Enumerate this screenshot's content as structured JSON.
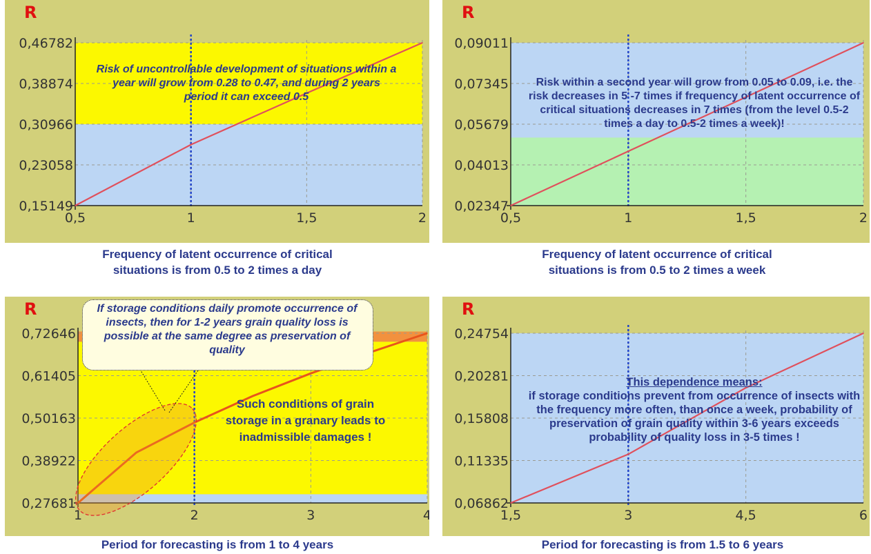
{
  "colors": {
    "frame_bg": "#d2d07a",
    "plot_bg": "#bcd6f4",
    "yellow": "#fcf800",
    "green": "#b5f1b2",
    "orange_band": "#f2913e",
    "curve_red": "#e0505c",
    "curve_orange": "#e8541c",
    "grid": "#9a9a90",
    "marker_blue": "#2244c8",
    "axis_label": "#e01010",
    "text_blue": "#2b3a8c"
  },
  "charts": [
    {
      "id": "tl",
      "axis_letter": "R",
      "yticks": [
        "0,46782",
        "0,38874",
        "0,30966",
        "0,23058",
        "0,15149"
      ],
      "xticks": [
        "0,5",
        "1",
        "1,5",
        "2"
      ],
      "caption": "Frequency of latent occurrence of critical\nsituations is from 0.5 to 2 times a day",
      "note": "Risk of uncontrollable development of situations within a year will grow from 0.28 to 0.47, and during 2 years period it can exceed 0.5"
    },
    {
      "id": "tr",
      "axis_letter": "R",
      "yticks": [
        "0,09011",
        "0,07345",
        "0,05679",
        "0,04013",
        "0,02347"
      ],
      "xticks": [
        "0,5",
        "1",
        "1,5",
        "2"
      ],
      "caption": "Frequency of latent occurrence of critical\nsituations is from 0.5 to 2 times a week",
      "note": "Risk within a second year will grow  from 0.05 to 0.09, i.e. the risk decreases in 5 -7 times if frequency of latent occurrence of critical situations decreases in 7 times  (from  the level 0.5-2 times a day to 0.5-2 times a week)!"
    },
    {
      "id": "bl",
      "axis_letter": "R",
      "yticks": [
        "0,72646",
        "0,61405",
        "0,50163",
        "0,38922",
        "0,27681"
      ],
      "xticks": [
        "1",
        "2",
        "3",
        "4"
      ],
      "caption": "Period for  forecasting is from 1 to 4 years",
      "callout": "If storage conditions daily promote occurrence of insects, then for 1-2 years grain quality loss is possible at the same degree as preservation of quality",
      "note": "Such conditions  of grain storage  in a granary leads to inadmissible damages  !"
    },
    {
      "id": "br",
      "axis_letter": "R",
      "yticks": [
        "0,24754",
        "0,20281",
        "0,15808",
        "0,11335",
        "0,06862"
      ],
      "xticks": [
        "1,5",
        "3",
        "4,5",
        "6"
      ],
      "caption": "Period for  forecasting is from 1.5 to 6 years",
      "note_title": "This dependence means:",
      "note": "if storage conditions prevent from occurrence of insects with the frequency more often, than once a week, probability of preservation of grain quality within 3-6 years exceeds probability of quality loss in 3-5 times !"
    }
  ],
  "chart_data": [
    {
      "type": "line",
      "x": [
        0.5,
        1,
        1.5,
        2
      ],
      "y": [
        0.15149,
        0.27,
        0.37,
        0.46782
      ],
      "xlim": [
        0.5,
        2
      ],
      "ylim": [
        0.15149,
        0.46782
      ],
      "xlabel": "",
      "ylabel": "R",
      "marker_x": 1,
      "bands": [
        {
          "from": 0.15149,
          "to": 0.30966,
          "color": "blue"
        },
        {
          "from": 0.30966,
          "to": 0.46782,
          "color": "yellow"
        }
      ]
    },
    {
      "type": "line",
      "x": [
        0.5,
        1,
        1.5,
        2
      ],
      "y": [
        0.02347,
        0.0457,
        0.0679,
        0.09011
      ],
      "xlim": [
        0.5,
        2
      ],
      "ylim": [
        0.02347,
        0.09011
      ],
      "xlabel": "",
      "ylabel": "R",
      "marker_x": 1,
      "bands": [
        {
          "from": 0.02347,
          "to": 0.0513,
          "color": "green"
        },
        {
          "from": 0.0513,
          "to": 0.09011,
          "color": "blue"
        }
      ]
    },
    {
      "type": "line",
      "x": [
        1,
        1.5,
        2,
        2.5,
        3,
        3.5,
        4
      ],
      "y": [
        0.27681,
        0.41,
        0.49,
        0.56,
        0.62,
        0.675,
        0.72646
      ],
      "xlim": [
        1,
        4
      ],
      "ylim": [
        0.27681,
        0.72646
      ],
      "xlabel": "",
      "ylabel": "R",
      "marker_x": 2,
      "bands": [
        {
          "from": 0.27681,
          "to": 0.3,
          "color": "blue"
        },
        {
          "from": 0.3,
          "to": 0.704,
          "color": "yellow"
        },
        {
          "from": 0.704,
          "to": 0.731,
          "color": "orange"
        }
      ]
    },
    {
      "type": "line",
      "x": [
        1.5,
        3,
        4.5,
        6
      ],
      "y": [
        0.06862,
        0.12,
        0.19,
        0.24754
      ],
      "xlim": [
        1.5,
        6
      ],
      "ylim": [
        0.06862,
        0.24754
      ],
      "xlabel": "",
      "ylabel": "R",
      "marker_x": 3,
      "bands": [
        {
          "from": 0.06862,
          "to": 0.24754,
          "color": "blue"
        }
      ]
    }
  ]
}
